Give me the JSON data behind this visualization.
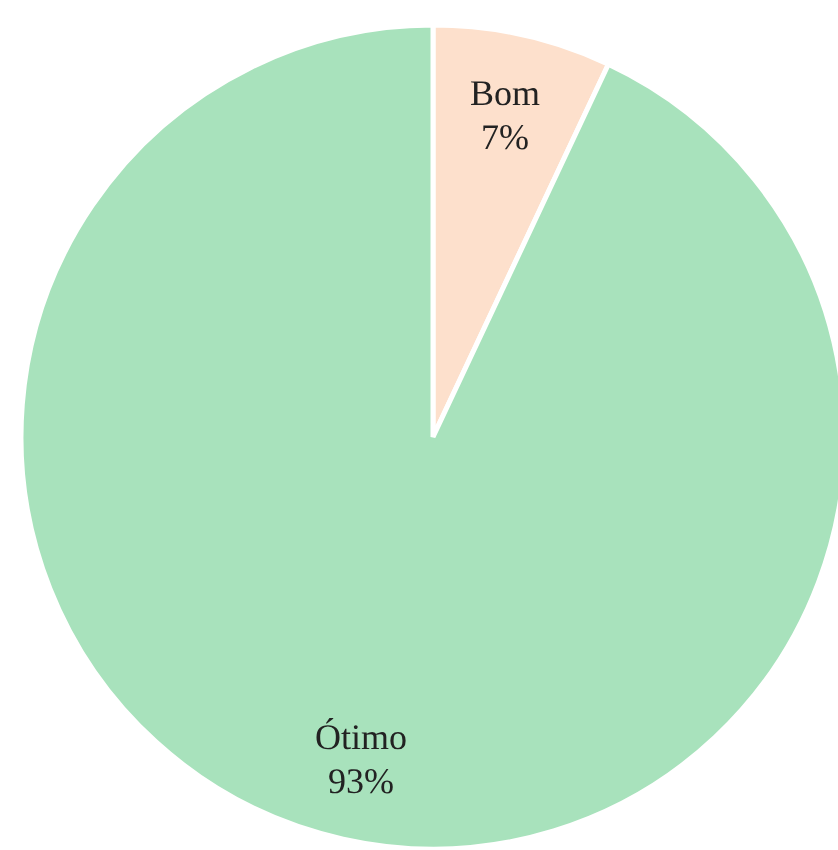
{
  "chart_data": {
    "type": "pie",
    "categories": [
      "Bom",
      "Ótimo"
    ],
    "values": [
      7,
      93
    ],
    "colors": [
      "#fde0cc",
      "#a8e2bc"
    ],
    "value_labels": [
      "7%",
      "93%"
    ]
  }
}
